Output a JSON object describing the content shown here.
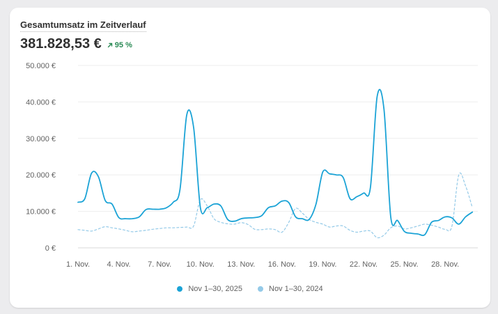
{
  "card": {
    "title": "Gesamtumsatz im Zeitverlauf",
    "total": "381.828,53 €",
    "change": "95 %",
    "change_icon": "arrow-up-right-icon"
  },
  "chart_data": {
    "type": "line",
    "ylim": [
      0,
      50000
    ],
    "y_ticks": [
      0,
      10000,
      20000,
      30000,
      40000,
      50000
    ],
    "y_tick_labels": [
      "0 €",
      "10.000 €",
      "20.000 €",
      "30.000 €",
      "40.000 €",
      "50.000 €"
    ],
    "x_tick_labels": [
      "1. Nov.",
      "4. Nov.",
      "7. Nov.",
      "10. Nov.",
      "13. Nov.",
      "16. Nov.",
      "19. Nov.",
      "22. Nov.",
      "25. Nov.",
      "28. Nov."
    ],
    "x_tick_days": [
      1,
      4,
      7,
      10,
      13,
      16,
      19,
      22,
      25,
      28
    ],
    "x": [
      1,
      1.5,
      2,
      2.5,
      3,
      3.5,
      4,
      4.5,
      5,
      5.5,
      6,
      6.5,
      7,
      7.5,
      8,
      8.5,
      9,
      9.5,
      10,
      10.5,
      11,
      11.5,
      12,
      12.5,
      13,
      13.5,
      14,
      14.5,
      15,
      15.5,
      16,
      16.5,
      17,
      17.5,
      18,
      18.5,
      19,
      19.5,
      20,
      20.5,
      21,
      21.5,
      22,
      22.5,
      23,
      23.5,
      24,
      24.5,
      25,
      25.5,
      26,
      26.5,
      27,
      27.5,
      28,
      28.5,
      29,
      29.5,
      30
    ],
    "series": [
      {
        "name": "Nov 1–30, 2025",
        "color": "#1ba3d6",
        "dashed": false,
        "values": [
          12500,
          13500,
          20500,
          19500,
          13000,
          12000,
          8300,
          8000,
          8000,
          8500,
          10500,
          10600,
          10600,
          11000,
          12500,
          16000,
          36500,
          33000,
          11000,
          11000,
          12000,
          11500,
          7800,
          7300,
          8000,
          8200,
          8300,
          8800,
          11000,
          11500,
          12800,
          12400,
          8500,
          8000,
          7800,
          12000,
          20800,
          20300,
          20000,
          19300,
          13500,
          14000,
          15000,
          16500,
          41500,
          38000,
          8500,
          7500,
          4500,
          4000,
          3800,
          3600,
          7000,
          7500,
          8500,
          8200,
          6500,
          8500,
          9800
        ]
      },
      {
        "name": "Nov 1–30, 2024",
        "color": "#94cae8",
        "dashed": true,
        "values": [
          5000,
          4800,
          4600,
          5200,
          5800,
          5500,
          5200,
          4800,
          4400,
          4600,
          4800,
          5100,
          5300,
          5500,
          5500,
          5600,
          5700,
          6000,
          13200,
          11500,
          8000,
          7000,
          6600,
          6500,
          6900,
          6400,
          5100,
          5000,
          5200,
          5000,
          4300,
          7000,
          10800,
          9500,
          7800,
          7000,
          6500,
          5700,
          6000,
          6000,
          4800,
          4300,
          4600,
          4600,
          2800,
          3500,
          5500,
          6000,
          5200,
          5500,
          6000,
          6500,
          6200,
          5700,
          5100,
          6000,
          20000,
          17000,
          11000
        ]
      }
    ]
  },
  "legend": [
    {
      "label": "Nov 1–30, 2025",
      "color": "#1ba3d6"
    },
    {
      "label": "Nov 1–30, 2024",
      "color": "#94cae8"
    }
  ]
}
